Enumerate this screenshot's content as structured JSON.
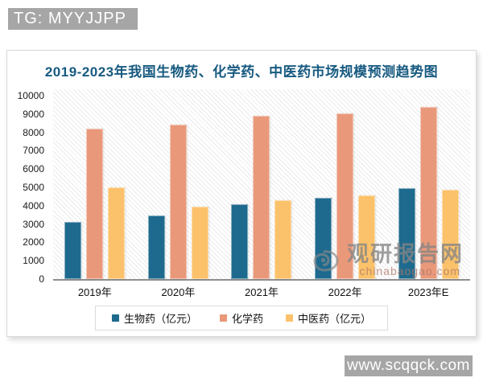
{
  "watermarks": {
    "tg": "TG: MYYJJPP",
    "site": "www.scqqck.com",
    "chinabaogao_name": "观研报告网",
    "chinabaogao_domain": "chinabaogao.com"
  },
  "chart_data": {
    "type": "bar",
    "title": "2019-2023年我国生物药、化学药、中医药市场规模预测趋势图",
    "title_color": "#175a80",
    "categories": [
      "2019年",
      "2020年",
      "2021年",
      "2022年",
      "2023年E"
    ],
    "series": [
      {
        "name": "生物药（亿元）",
        "color": "#1e6a8e",
        "values": [
          3100,
          3450,
          4100,
          4450,
          4950
        ]
      },
      {
        "name": "化学药",
        "color": "#e9997a",
        "values": [
          8200,
          8400,
          8900,
          9050,
          9400
        ]
      },
      {
        "name": "中医药（亿元）",
        "color": "#fbc26b",
        "values": [
          5000,
          3950,
          4300,
          4550,
          4850
        ]
      }
    ],
    "ylabel": "",
    "xlabel": "",
    "ylim": [
      0,
      10000
    ],
    "yticks": [
      0,
      1000,
      2000,
      3000,
      4000,
      5000,
      6000,
      7000,
      8000,
      9000,
      10000
    ],
    "grid": false,
    "plot_background": "diagonal-hatch",
    "legend_position": "bottom"
  }
}
